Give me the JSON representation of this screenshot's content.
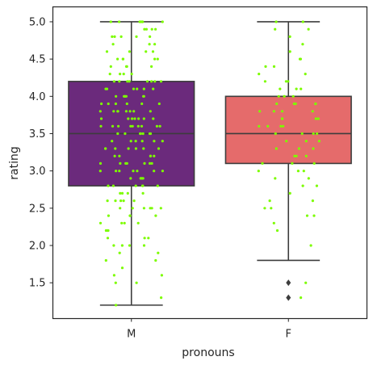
{
  "chart_data": {
    "type": "box",
    "xlabel": "pronouns",
    "ylabel": "rating",
    "categories": [
      "M",
      "F"
    ],
    "ylim": [
      1.02,
      5.2
    ],
    "yticks": [
      "1.5",
      "2.0",
      "2.5",
      "3.0",
      "3.5",
      "4.0",
      "4.5",
      "5.0"
    ],
    "grid": false,
    "boxes": [
      {
        "name": "M",
        "color": "#6b2a7c",
        "whisker_low": 1.2,
        "q1": 2.8,
        "median": 3.5,
        "q3": 4.2,
        "whisker_high": 5.0,
        "outliers": []
      },
      {
        "name": "F",
        "color": "#e56b6b",
        "whisker_low": 1.8,
        "q1": 3.1,
        "median": 3.5,
        "q3": 4.0,
        "whisker_high": 5.0,
        "outliers": [
          1.5,
          1.3
        ]
      }
    ],
    "points_color": "#7cfc00",
    "strip_points": [
      {
        "category": "M",
        "values": [
          5.0,
          5.0,
          5.0,
          5.0,
          5.0,
          5.0,
          5.0,
          4.9,
          4.9,
          4.9,
          4.9,
          4.8,
          4.8,
          4.8,
          4.8,
          4.8,
          4.7,
          4.7,
          4.7,
          4.6,
          4.6,
          4.6,
          4.6,
          4.5,
          4.5,
          4.5,
          4.5,
          4.5,
          4.4,
          4.4,
          4.4,
          4.4,
          4.3,
          4.3,
          4.3,
          4.3,
          4.2,
          4.2,
          4.2,
          4.2,
          4.2,
          4.2,
          4.2,
          4.2,
          4.1,
          4.1,
          4.1,
          4.1,
          4.1,
          4.1,
          4.0,
          4.0,
          4.0,
          4.0,
          4.0,
          4.0,
          4.0,
          3.9,
          3.9,
          3.9,
          3.9,
          3.9,
          3.9,
          3.8,
          3.8,
          3.8,
          3.8,
          3.8,
          3.8,
          3.8,
          3.8,
          3.7,
          3.7,
          3.7,
          3.7,
          3.7,
          3.7,
          3.7,
          3.6,
          3.6,
          3.6,
          3.6,
          3.6,
          3.6,
          3.6,
          3.6,
          3.6,
          3.5,
          3.5,
          3.5,
          3.5,
          3.5,
          3.5,
          3.5,
          3.4,
          3.4,
          3.4,
          3.4,
          3.4,
          3.4,
          3.3,
          3.3,
          3.3,
          3.3,
          3.3,
          3.3,
          3.3,
          3.2,
          3.2,
          3.2,
          3.2,
          3.2,
          3.1,
          3.1,
          3.1,
          3.1,
          3.1,
          3.1,
          3.1,
          3.0,
          3.0,
          3.0,
          3.0,
          3.0,
          3.0,
          3.0,
          2.9,
          2.9,
          2.9,
          2.9,
          2.9,
          2.8,
          2.8,
          2.8,
          2.8,
          2.8,
          2.8,
          2.7,
          2.7,
          2.7,
          2.7,
          2.6,
          2.6,
          2.6,
          2.6,
          2.6,
          2.5,
          2.5,
          2.5,
          2.5,
          2.5,
          2.5,
          2.4,
          2.4,
          2.4,
          2.4,
          2.3,
          2.3,
          2.3,
          2.3,
          2.2,
          2.2,
          2.2,
          2.1,
          2.1,
          2.1,
          2.0,
          2.0,
          2.0,
          2.0,
          1.9,
          1.9,
          1.8,
          1.8,
          1.7,
          1.6,
          1.6,
          1.5,
          1.5,
          1.3,
          1.2
        ]
      },
      {
        "category": "F",
        "values": [
          5.0,
          5.0,
          4.9,
          4.9,
          4.8,
          4.7,
          4.6,
          4.5,
          4.5,
          4.4,
          4.4,
          4.3,
          4.3,
          4.2,
          4.2,
          4.2,
          4.1,
          4.1,
          4.1,
          4.0,
          4.0,
          4.0,
          4.0,
          3.9,
          3.9,
          3.9,
          3.9,
          3.9,
          3.8,
          3.8,
          3.8,
          3.8,
          3.7,
          3.7,
          3.7,
          3.7,
          3.6,
          3.6,
          3.6,
          3.6,
          3.5,
          3.5,
          3.5,
          3.5,
          3.4,
          3.4,
          3.4,
          3.3,
          3.3,
          3.3,
          3.2,
          3.2,
          3.2,
          3.1,
          3.1,
          3.1,
          3.0,
          3.0,
          3.0,
          2.9,
          2.9,
          2.8,
          2.8,
          2.7,
          2.6,
          2.6,
          2.5,
          2.5,
          2.4,
          2.4,
          2.3,
          2.2,
          2.0,
          1.5,
          1.3
        ]
      }
    ]
  }
}
